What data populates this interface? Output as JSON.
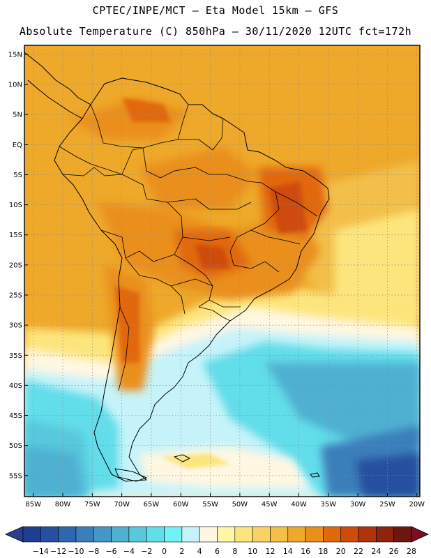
{
  "header": {
    "line1": "CPTEC/INPE/MCT –  Eta Model 15km – GFS",
    "line2": "Absolute Temperature (C) 850hPa – 30/11/2020 12UTC fct=172h"
  },
  "map": {
    "lat_labels": [
      "15N",
      "10N",
      "5N",
      "EQ",
      "5S",
      "10S",
      "15S",
      "20S",
      "25S",
      "30S",
      "35S",
      "40S",
      "45S",
      "50S",
      "55S"
    ],
    "lon_labels": [
      "85W",
      "80W",
      "75W",
      "70W",
      "65W",
      "60W",
      "55W",
      "50W",
      "45W",
      "40W",
      "35W",
      "30W",
      "25W",
      "20W"
    ],
    "lat_values": [
      15,
      10,
      5,
      0,
      -5,
      -10,
      -15,
      -20,
      -25,
      -30,
      -35,
      -40,
      -45,
      -50,
      -55
    ],
    "lon_values": [
      -85,
      -80,
      -75,
      -70,
      -65,
      -60,
      -55,
      -50,
      -45,
      -40,
      -35,
      -30,
      -25,
      -20
    ]
  },
  "colorbar": {
    "labels": [
      "-14",
      "-12",
      "-10",
      "-8",
      "-6",
      "-4",
      "-2",
      "0",
      "2",
      "4",
      "6",
      "8",
      "10",
      "12",
      "14",
      "16",
      "18",
      "20",
      "22",
      "24",
      "26",
      "28"
    ],
    "colors": [
      "#1d3f8f",
      "#26509f",
      "#2f66ad",
      "#3a7fba",
      "#4596c6",
      "#4fb0d2",
      "#58c8dd",
      "#62ddea",
      "#6ff2f6",
      "#c6f3fa",
      "#fff7e2",
      "#fff6a8",
      "#fde57d",
      "#f8d264",
      "#f3bf48",
      "#eea82a",
      "#ea8f1a",
      "#e1680d",
      "#cf4b08",
      "#b0340a",
      "#8e230e",
      "#6d1610"
    ],
    "under_color": "#2a3f8c",
    "over_color": "#7a0e22"
  },
  "palette": {
    "warm_bg": "#eea82a",
    "hot": "#ea8f1a",
    "very_hot": "#e1680d",
    "extreme": "#cf4b08",
    "mild": "#f3bf48",
    "cool_yellow": "#fde57d",
    "pale": "#fff6a8",
    "cream": "#fff7e2",
    "light_cyan": "#c6f3fa",
    "cyan": "#62ddea",
    "aqua": "#4fb0d2",
    "blue": "#3a7fba",
    "deep_blue": "#26509f"
  }
}
